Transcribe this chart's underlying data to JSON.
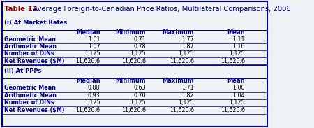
{
  "title_bold": "Table 12",
  "title_rest": "  Average Foreign-to-Canadian Price Ratios, Multilateral Comparisons, 2006",
  "title_color_bold": "#8B0000",
  "title_color_rest": "#00008B",
  "section1_label": "(i) At Market Rates",
  "section2_label": "(ii) At PPPs",
  "col_headers": [
    "Median",
    "Minimum",
    "Maximum",
    "Mean"
  ],
  "row_labels_color": "#00008B",
  "col_header_color": "#00008B",
  "section_label_color": "#00008B",
  "rows_s1": [
    [
      "Geometric Mean",
      "1.01",
      "0.71",
      "1.77",
      "1.11"
    ],
    [
      "Arithmetic Mean",
      "1.07",
      "0.78",
      "1.87",
      "1.16"
    ],
    [
      "Number of DINs",
      "1,125",
      "1,125",
      "1,125",
      "1,125"
    ],
    [
      "Net Revenues ($M)",
      "11,620.6",
      "11,620.6",
      "11,620.6",
      "11,620.6"
    ]
  ],
  "rows_s2": [
    [
      "Geometric Mean",
      "0.88",
      "0.63",
      "1.71",
      "1.00"
    ],
    [
      "Arithmetic Mean",
      "0.93",
      "0.70",
      "1.82",
      "1.04"
    ],
    [
      "Number of DINs",
      "1,125",
      "1,125",
      "1,125",
      "1,125"
    ],
    [
      "Net Revenues ($M)",
      "11,620.6",
      "11,620.6",
      "11,620.6",
      "11,620.6"
    ]
  ],
  "bg_color": "#EEF2F7",
  "border_color": "#00008B",
  "text_color_body": "#000000"
}
